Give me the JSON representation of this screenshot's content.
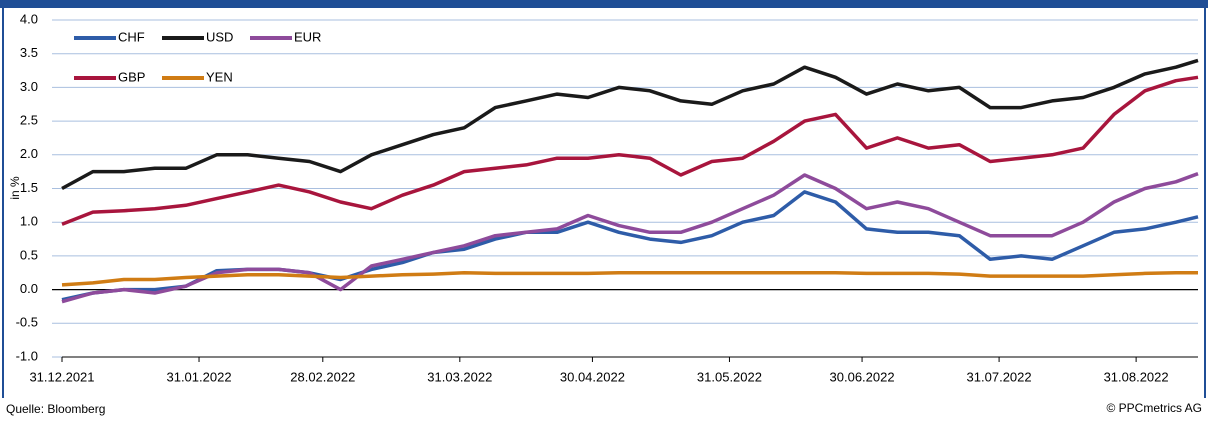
{
  "chart_data": {
    "type": "line",
    "y_label": "in %",
    "source": "Quelle: Bloomberg",
    "copyright": "© PPCmetrics AG",
    "legend": "upper left",
    "grid": true,
    "x": [
      "31.12.2021",
      "07.01.2022",
      "14.01.2022",
      "21.01.2022",
      "28.01.2022",
      "04.02.2022",
      "11.02.2022",
      "18.02.2022",
      "25.02.2022",
      "04.03.2022",
      "11.03.2022",
      "18.03.2022",
      "25.03.2022",
      "01.04.2022",
      "08.04.2022",
      "15.04.2022",
      "22.04.2022",
      "29.04.2022",
      "06.05.2022",
      "13.05.2022",
      "20.05.2022",
      "27.05.2022",
      "03.06.2022",
      "10.06.2022",
      "17.06.2022",
      "24.06.2022",
      "01.07.2022",
      "08.07.2022",
      "15.07.2022",
      "22.07.2022",
      "29.07.2022",
      "05.08.2022",
      "12.08.2022",
      "19.08.2022",
      "26.08.2022",
      "02.09.2022",
      "09.09.2022",
      "14.09.2022"
    ],
    "xlim": [
      "31.12.2021",
      "14.09.2022"
    ],
    "xticks": [
      "31.12.2021",
      "31.01.2022",
      "28.02.2022",
      "31.03.2022",
      "30.04.2022",
      "31.05.2022",
      "30.06.2022",
      "31.07.2022",
      "31.08.2022"
    ],
    "ylim": [
      -1,
      4
    ],
    "yticks": [
      {
        "value": -1,
        "label": "-1.0"
      },
      -0.5,
      {
        "value": 0,
        "label": "0.0"
      },
      0.5,
      {
        "value": 1,
        "label": "1.0"
      },
      1.5,
      {
        "value": 2,
        "label": "2.0"
      },
      2.5,
      {
        "value": 3,
        "label": "3.0"
      },
      3.5,
      {
        "value": 4,
        "label": "4.0"
      }
    ],
    "series": [
      {
        "name": "CHF",
        "color": "#2e5ca8",
        "values": [
          -0.15,
          -0.05,
          0,
          0,
          0.05,
          0.28,
          0.3,
          0.3,
          0.25,
          0.15,
          0.3,
          0.4,
          0.55,
          0.6,
          0.75,
          0.85,
          0.85,
          1.0,
          0.85,
          0.75,
          0.7,
          0.8,
          1.0,
          1.1,
          1.45,
          1.3,
          0.9,
          0.85,
          0.85,
          0.8,
          0.45,
          0.5,
          0.45,
          0.65,
          0.85,
          0.9,
          1.0,
          1.08
        ]
      },
      {
        "name": "USD",
        "color": "#1a1a1a",
        "values": [
          1.5,
          1.75,
          1.75,
          1.8,
          1.8,
          2.0,
          2.0,
          1.95,
          1.9,
          1.75,
          2.0,
          2.15,
          2.3,
          2.4,
          2.7,
          2.8,
          2.9,
          2.85,
          3.0,
          2.95,
          2.8,
          2.75,
          2.95,
          3.05,
          3.3,
          3.15,
          2.9,
          3.05,
          2.95,
          3.0,
          2.7,
          2.7,
          2.8,
          2.85,
          3.0,
          3.2,
          3.3,
          3.4
        ]
      },
      {
        "name": "EUR",
        "color": "#8e4b9b",
        "values": [
          -0.18,
          -0.05,
          0,
          -0.05,
          0.05,
          0.25,
          0.3,
          0.3,
          0.25,
          0,
          0.35,
          0.45,
          0.55,
          0.65,
          0.8,
          0.85,
          0.9,
          1.1,
          0.95,
          0.85,
          0.85,
          1.0,
          1.2,
          1.4,
          1.7,
          1.5,
          1.2,
          1.3,
          1.2,
          1.0,
          0.8,
          0.8,
          0.8,
          1.0,
          1.3,
          1.5,
          1.6,
          1.72
        ]
      },
      {
        "name": "GBP",
        "color": "#a8153d",
        "values": [
          0.97,
          1.15,
          1.17,
          1.2,
          1.25,
          1.35,
          1.45,
          1.55,
          1.45,
          1.3,
          1.2,
          1.4,
          1.55,
          1.75,
          1.8,
          1.85,
          1.95,
          1.95,
          2.0,
          1.95,
          1.7,
          1.9,
          1.95,
          2.2,
          2.5,
          2.6,
          2.1,
          2.25,
          2.1,
          2.15,
          1.9,
          1.95,
          2.0,
          2.1,
          2.6,
          2.95,
          3.1,
          3.15
        ]
      },
      {
        "name": "YEN",
        "color": "#d07c14",
        "values": [
          0.07,
          0.1,
          0.15,
          0.15,
          0.18,
          0.2,
          0.22,
          0.22,
          0.2,
          0.18,
          0.2,
          0.22,
          0.23,
          0.25,
          0.24,
          0.24,
          0.24,
          0.24,
          0.25,
          0.25,
          0.25,
          0.25,
          0.25,
          0.25,
          0.25,
          0.25,
          0.24,
          0.24,
          0.24,
          0.23,
          0.2,
          0.2,
          0.2,
          0.2,
          0.22,
          0.24,
          0.25,
          0.25
        ]
      }
    ]
  }
}
